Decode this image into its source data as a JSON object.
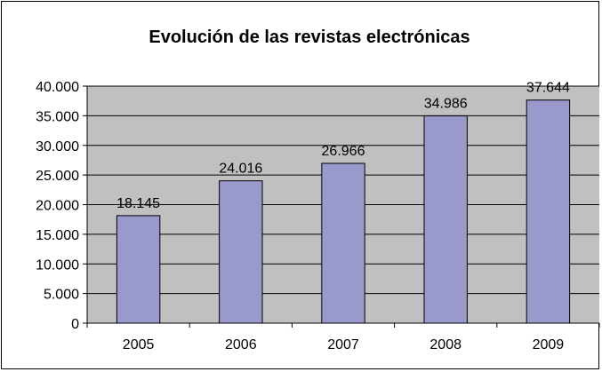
{
  "chart_data": {
    "type": "bar",
    "title": "Evolución de las revistas electrónicas",
    "categories": [
      "2005",
      "2006",
      "2007",
      "2008",
      "2009"
    ],
    "values": [
      18145,
      24016,
      26966,
      34986,
      37644
    ],
    "value_labels": [
      "18.145",
      "24.016",
      "26.966",
      "34.986",
      "37.644"
    ],
    "ylim": [
      0,
      40000
    ],
    "y_ticks": [
      0,
      5000,
      10000,
      15000,
      20000,
      25000,
      30000,
      35000,
      40000
    ],
    "y_tick_labels": [
      "0",
      "5.000",
      "10.000",
      "15.000",
      "20.000",
      "25.000",
      "30.000",
      "35.000",
      "40.000"
    ],
    "grid": true,
    "legend": "none",
    "colors": {
      "bar_fill": "#9999cc",
      "bar_stroke": "#000000",
      "plot_background": "#c0c0c0",
      "grid": "#000000"
    }
  }
}
